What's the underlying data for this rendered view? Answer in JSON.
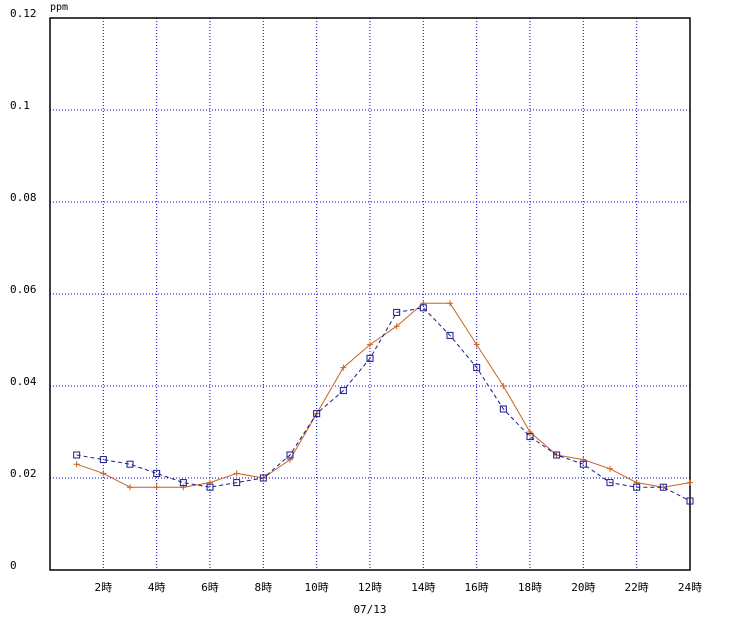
{
  "chart_data": {
    "type": "line",
    "y_unit": "ppm",
    "x_label": "07/13",
    "x": [
      1,
      2,
      3,
      4,
      5,
      6,
      7,
      8,
      9,
      10,
      11,
      12,
      13,
      14,
      15,
      16,
      17,
      18,
      19,
      20,
      21,
      22,
      23,
      24
    ],
    "xlim": [
      0,
      24
    ],
    "xticks": [
      {
        "value": 2,
        "label": "2時"
      },
      {
        "value": 4,
        "label": "4時"
      },
      {
        "value": 6,
        "label": "6時"
      },
      {
        "value": 8,
        "label": "8時"
      },
      {
        "value": 10,
        "label": "10時"
      },
      {
        "value": 12,
        "label": "12時"
      },
      {
        "value": 14,
        "label": "14時"
      },
      {
        "value": 16,
        "label": "16時"
      },
      {
        "value": 18,
        "label": "18時"
      },
      {
        "value": 20,
        "label": "20時"
      },
      {
        "value": 22,
        "label": "22時"
      },
      {
        "value": 24,
        "label": "24時"
      }
    ],
    "ylim": [
      0,
      0.12
    ],
    "yticks": [
      0,
      0.02,
      0.04,
      0.06,
      0.08,
      0.1,
      0.12
    ],
    "grid": true,
    "series": [
      {
        "color": "#c8641e",
        "marker": "plus",
        "dash": false,
        "values": [
          0.023,
          0.021,
          0.018,
          0.018,
          0.018,
          0.019,
          0.021,
          0.02,
          0.024,
          0.034,
          0.044,
          0.049,
          0.053,
          0.058,
          0.058,
          0.049,
          0.04,
          0.03,
          0.025,
          0.024,
          0.022,
          0.019,
          0.018,
          0.019
        ]
      },
      {
        "color": "#1a1a8c",
        "marker": "square",
        "dash": true,
        "values": [
          0.025,
          0.024,
          0.023,
          0.021,
          0.019,
          0.018,
          0.019,
          0.02,
          0.025,
          0.034,
          0.039,
          0.046,
          0.056,
          0.057,
          0.051,
          0.044,
          0.035,
          0.029,
          0.025,
          0.023,
          0.019,
          0.018,
          0.018,
          0.015
        ]
      }
    ]
  }
}
